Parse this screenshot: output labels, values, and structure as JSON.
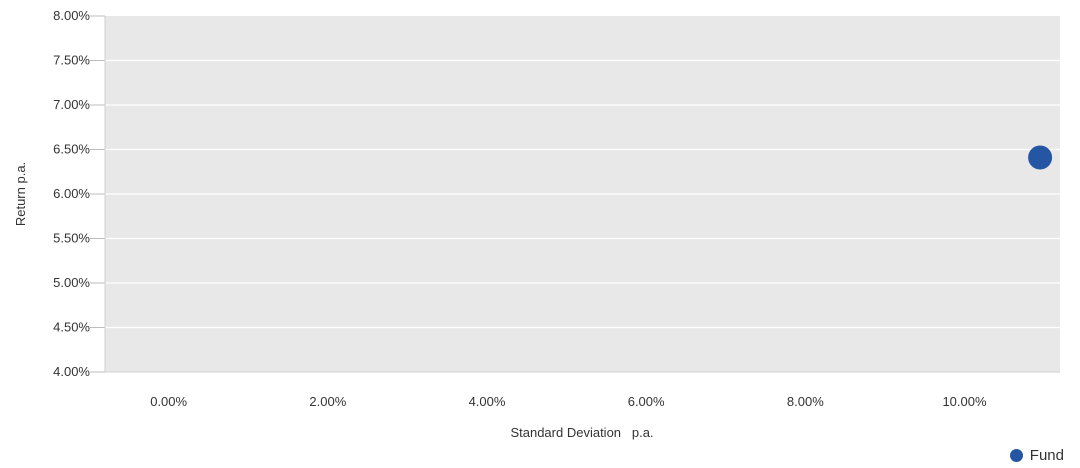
{
  "chart_data": {
    "type": "scatter",
    "xlabel": "Standard Deviation   p.a.",
    "ylabel": "Return p.a.",
    "xlim": [
      -0.8,
      11.2
    ],
    "ylim": [
      4.0,
      8.0
    ],
    "x_ticks": [
      0,
      2,
      4,
      6,
      8,
      10
    ],
    "x_tick_labels": [
      "0.00%",
      "2.00%",
      "4.00%",
      "6.00%",
      "8.00%",
      "10.00%"
    ],
    "y_ticks": [
      4.0,
      4.5,
      5.0,
      5.5,
      6.0,
      6.5,
      7.0,
      7.5,
      8.0
    ],
    "y_tick_labels": [
      "4.00%",
      "4.50%",
      "5.00%",
      "5.50%",
      "6.00%",
      "6.50%",
      "7.00%",
      "7.50%",
      "8.00%"
    ],
    "grid": true,
    "legend_position": "bottom-right",
    "series": [
      {
        "name": "Fund",
        "color": "#2456a3",
        "points": [
          {
            "x": 10.95,
            "y": 6.41
          }
        ]
      }
    ]
  }
}
